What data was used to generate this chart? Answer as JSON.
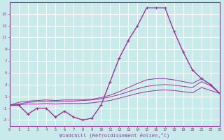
{
  "xlabel": "Windchill (Refroidissement éolien,°C)",
  "background_color": "#c8eaea",
  "grid_color": "#ffffff",
  "line_color": "#993399",
  "x_hours": [
    0,
    1,
    2,
    3,
    4,
    5,
    6,
    7,
    8,
    9,
    10,
    11,
    12,
    13,
    14,
    15,
    16,
    17,
    18,
    19,
    20,
    21,
    22,
    23
  ],
  "line1_y": [
    -0.5,
    -0.5,
    -2,
    -1,
    -1,
    -2.5,
    -1.5,
    -2.5,
    -3,
    -2.7,
    -0.5,
    3.5,
    7.5,
    10.5,
    13,
    16,
    16,
    16,
    12,
    8.5,
    5.5,
    4,
    3,
    1.5
  ],
  "line2_y": [
    -0.5,
    0.0,
    0.2,
    0.3,
    0.4,
    0.3,
    0.4,
    0.4,
    0.4,
    0.5,
    0.8,
    1.2,
    1.8,
    2.5,
    3.2,
    3.8,
    4.0,
    4.0,
    3.8,
    3.5,
    3.2,
    4.0,
    3.0,
    1.5
  ],
  "line3_y": [
    -0.5,
    -0.3,
    0.0,
    0.1,
    0.2,
    0.1,
    0.2,
    0.2,
    0.3,
    0.4,
    0.6,
    0.9,
    1.3,
    1.8,
    2.3,
    2.7,
    2.9,
    3.0,
    2.9,
    2.7,
    2.5,
    3.5,
    2.8,
    1.5
  ],
  "line4_y": [
    -0.5,
    -0.4,
    -0.3,
    -0.3,
    -0.2,
    -0.3,
    -0.2,
    -0.2,
    -0.2,
    -0.1,
    0.1,
    0.3,
    0.7,
    1.1,
    1.5,
    1.8,
    2.0,
    2.1,
    2.0,
    1.8,
    1.6,
    2.5,
    2.0,
    1.5
  ],
  "yticks": [
    -3,
    -1,
    1,
    3,
    5,
    7,
    9,
    11,
    13,
    15
  ],
  "ylim": [
    -4,
    17
  ],
  "xlim": [
    0,
    23
  ]
}
